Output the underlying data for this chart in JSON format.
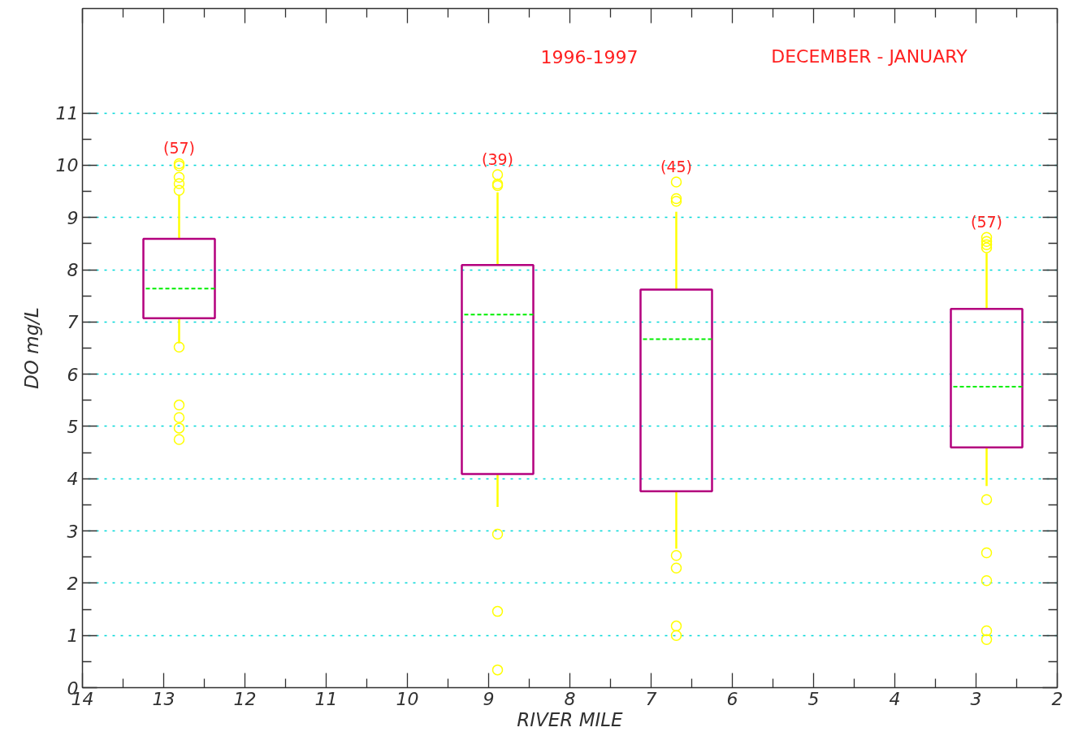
{
  "chart_data": {
    "type": "box",
    "xlabel": "RIVER MILE",
    "ylabel": "DO mg/L",
    "x": [
      12.81,
      8.89,
      6.69,
      2.87
    ],
    "xlim": [
      14,
      2
    ],
    "xticks": [
      14,
      13,
      12,
      11,
      10,
      9,
      8,
      7,
      6,
      5,
      4,
      3,
      2
    ],
    "ylim": [
      0,
      13
    ],
    "yticks": [
      0,
      1,
      2,
      3,
      4,
      5,
      6,
      7,
      8,
      9,
      10,
      11
    ],
    "grid": "y",
    "series": [
      {
        "color": "#b4007e",
        "boxes": [
          {
            "low": 6.59,
            "q1": 7.07,
            "median": 7.64,
            "q3": 8.59,
            "high": 9.43,
            "outliers": [
              10.03,
              9.99,
              9.77,
              9.65,
              9.52,
              6.52,
              5.41,
              5.17,
              4.97,
              4.75
            ]
          },
          {
            "low": 3.46,
            "q1": 4.09,
            "median": 7.14,
            "q3": 8.09,
            "high": 9.48,
            "outliers": [
              9.82,
              9.64,
              9.61,
              2.94,
              1.46,
              0.34
            ]
          },
          {
            "low": 2.66,
            "q1": 3.76,
            "median": 6.67,
            "q3": 7.62,
            "high": 9.11,
            "outliers": [
              9.68,
              9.36,
              9.31,
              2.53,
              2.29,
              1.18,
              1.0
            ]
          },
          {
            "low": 3.86,
            "q1": 4.6,
            "median": 5.76,
            "q3": 7.25,
            "high": 8.32,
            "outliers": [
              8.62,
              8.54,
              8.48,
              8.42,
              3.6,
              2.58,
              2.05,
              1.09,
              0.92
            ]
          }
        ]
      }
    ],
    "annotations": [
      "1996-1997",
      "DECEMBER - JANUARY",
      "(57)",
      "(39)",
      "(45)",
      "(57)"
    ]
  }
}
